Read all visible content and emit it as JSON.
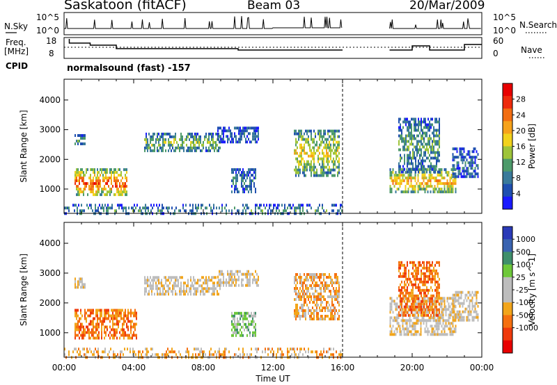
{
  "header": {
    "station": "Saskatoon (fitACF)",
    "beam": "Beam 03",
    "date": "20/Mar/2009"
  },
  "strip_labels": {
    "nsky": "N.Sky",
    "nsky_ticks": [
      "10^5",
      "10^0"
    ],
    "nsearch": "N.Search",
    "nsearch_ticks": [
      "10^5",
      "10^0"
    ],
    "freq_line1": "Freq.",
    "freq_line2": "[MHz]",
    "freq_ticks": [
      "18",
      "8"
    ],
    "nave": "Nave",
    "nave_ticks": [
      "60",
      "0"
    ],
    "cpid_label": "CPID",
    "cpid_value": "normalsound (fast) -157"
  },
  "colors": {
    "power_scale": [
      "#1a1aff",
      "#1f4fb0",
      "#3a7a9a",
      "#4d9a6a",
      "#9ec43a",
      "#f2d21c",
      "#f6a21b",
      "#f26d12",
      "#ee2a0c",
      "#e80000"
    ],
    "velocity_scale": [
      "#2a3ab8",
      "#3a63b0",
      "#3f8f6b",
      "#6ec83a",
      "#bdbdbd",
      "#bdbdbd",
      "#f2a51b",
      "#f57010",
      "#ef3a0c",
      "#e80000"
    ]
  },
  "chart_data": [
    {
      "type": "heatmap",
      "title": "Power",
      "xlabel": "Time UT",
      "ylabel": "Slant Range [km]",
      "x_ticks": [
        "00:00",
        "04:00",
        "08:00",
        "12:00",
        "16:00",
        "20:00",
        "00:00"
      ],
      "y_ticks": [
        "1000",
        "2000",
        "3000",
        "4000"
      ],
      "ylim": [
        180,
        4700
      ],
      "x_range_hours": [
        0,
        24
      ],
      "data_gap_hours": [
        16.0,
        18.7
      ],
      "colorbar_label": "Power [dB]",
      "colorbar_ticks": [
        "4",
        "8",
        "12",
        "16",
        "20",
        "24",
        "28"
      ],
      "colorbar_range": [
        0,
        32
      ],
      "echo_regions": [
        {
          "t_start": 0.6,
          "t_end": 3.6,
          "r_min": 800,
          "r_max": 1700,
          "level": 27
        },
        {
          "t_start": 0.6,
          "t_end": 1.2,
          "r_min": 2500,
          "r_max": 2850,
          "level": 10
        },
        {
          "t_start": 4.6,
          "t_end": 9.0,
          "r_min": 2300,
          "r_max": 2900,
          "level": 14
        },
        {
          "t_start": 8.8,
          "t_end": 11.2,
          "r_min": 2550,
          "r_max": 3100,
          "level": 6
        },
        {
          "t_start": 9.6,
          "t_end": 11.0,
          "r_min": 900,
          "r_max": 1700,
          "level": 7
        },
        {
          "t_start": 13.2,
          "t_end": 15.8,
          "r_min": 1500,
          "r_max": 3000,
          "level": 18
        },
        {
          "t_start": 18.7,
          "t_end": 22.5,
          "r_min": 900,
          "r_max": 1700,
          "level": 22
        },
        {
          "t_start": 19.2,
          "t_end": 21.6,
          "r_min": 1600,
          "r_max": 3400,
          "level": 11
        },
        {
          "t_start": 22.3,
          "t_end": 23.8,
          "r_min": 1400,
          "r_max": 2400,
          "level": 6
        },
        {
          "t_start": 0.0,
          "t_end": 16.0,
          "r_min": 180,
          "r_max": 500,
          "level": 9
        }
      ]
    },
    {
      "type": "heatmap",
      "title": "Velocity",
      "xlabel": "Time UT",
      "ylabel": "Slant Range [km]",
      "x_ticks": [
        "00:00",
        "04:00",
        "08:00",
        "12:00",
        "16:00",
        "20:00",
        "00:00"
      ],
      "y_ticks": [
        "1000",
        "2000",
        "3000",
        "4000"
      ],
      "ylim": [
        180,
        4700
      ],
      "x_range_hours": [
        0,
        24
      ],
      "data_gap_hours": [
        16.0,
        18.7
      ],
      "colorbar_label": "Velocity [m s^-1]",
      "colorbar_ticks": [
        "1000",
        "500",
        "100",
        "25",
        "-25",
        "-100",
        "-500",
        "-1000"
      ],
      "echo_regions": [
        {
          "t_start": 0.6,
          "t_end": 4.2,
          "r_min": 800,
          "r_max": 1800,
          "level": 7
        },
        {
          "t_start": 0.6,
          "t_end": 1.2,
          "r_min": 2500,
          "r_max": 2850,
          "level": 5
        },
        {
          "t_start": 4.6,
          "t_end": 9.0,
          "r_min": 2300,
          "r_max": 2900,
          "level": 5
        },
        {
          "t_start": 8.8,
          "t_end": 11.2,
          "r_min": 2550,
          "r_max": 3100,
          "level": 5
        },
        {
          "t_start": 9.6,
          "t_end": 11.0,
          "r_min": 900,
          "r_max": 1700,
          "level": 3
        },
        {
          "t_start": 13.2,
          "t_end": 15.8,
          "r_min": 1500,
          "r_max": 3000,
          "level": 6
        },
        {
          "t_start": 18.7,
          "t_end": 22.5,
          "r_min": 900,
          "r_max": 2200,
          "level": 5
        },
        {
          "t_start": 19.2,
          "t_end": 21.6,
          "r_min": 1600,
          "r_max": 3400,
          "level": 7
        },
        {
          "t_start": 22.3,
          "t_end": 23.8,
          "r_min": 1400,
          "r_max": 2400,
          "level": 5
        },
        {
          "t_start": 0.0,
          "t_end": 16.0,
          "r_min": 180,
          "r_max": 500,
          "level": 6
        }
      ]
    }
  ]
}
